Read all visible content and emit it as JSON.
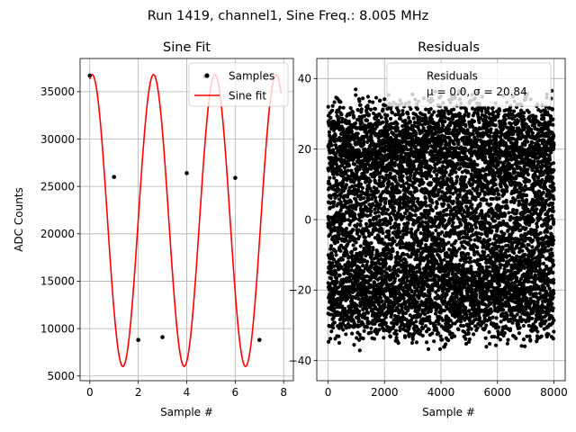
{
  "figure": {
    "suptitle": "Run 1419, channel1, Sine Freq.: 8.005 MHz"
  },
  "chart_data": [
    {
      "type": "line",
      "title": "Sine Fit",
      "xlabel": "Sample #",
      "ylabel": "ADC Counts",
      "xlim": [
        -0.4,
        8.4
      ],
      "ylim": [
        4500,
        38500
      ],
      "xticks": [
        0,
        2,
        4,
        6,
        8
      ],
      "yticks": [
        5000,
        10000,
        15000,
        20000,
        25000,
        30000,
        35000
      ],
      "xtick_labels": [
        "0",
        "2",
        "4",
        "6",
        "8"
      ],
      "ytick_labels": [
        "5000",
        "10000",
        "15000",
        "20000",
        "25000",
        "30000",
        "35000"
      ],
      "grid": true,
      "legend": {
        "placement": "upper right",
        "entries": [
          {
            "label": "Samples",
            "marker": "dot",
            "color": "#000000"
          },
          {
            "label": "Sine fit",
            "marker": "line",
            "color": "#ff0000"
          }
        ]
      },
      "samples": {
        "x": [
          0,
          1,
          2,
          3,
          4,
          4.75,
          6,
          7
        ],
        "y": [
          36700,
          26000,
          8800,
          9100,
          26400,
          36600,
          25900,
          8800
        ],
        "color": "#000000"
      },
      "sine_fit": {
        "amplitude": 15400,
        "offset": 21400,
        "period": 2.53,
        "peak_x": 0.1,
        "x_range": [
          0,
          7.9
        ],
        "color": "#ff0000"
      }
    },
    {
      "type": "scatter",
      "title": "Residuals",
      "xlabel": "Sample #",
      "ylabel": "",
      "xlim": [
        -400,
        8400
      ],
      "ylim": [
        -45.7,
        45.7
      ],
      "xticks": [
        0,
        2000,
        4000,
        6000,
        8000
      ],
      "yticks": [
        -40,
        -20,
        0,
        20,
        40
      ],
      "xtick_labels": [
        "0",
        "2000",
        "4000",
        "6000",
        "8000"
      ],
      "ytick_labels": [
        "−40",
        "−20",
        "0",
        "20",
        "40"
      ],
      "grid": true,
      "n_points": 8000,
      "mean": 0.0,
      "std": 20.84,
      "point_color": "#000000",
      "legend": {
        "placement": "upper right",
        "label_line1": "Residuals",
        "label_line2": "μ = 0.0, σ = 20.84"
      }
    }
  ]
}
